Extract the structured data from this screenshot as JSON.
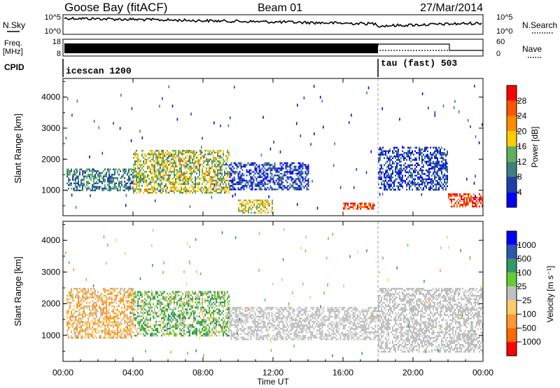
{
  "header": {
    "station": "Goose Bay (fitACF)",
    "beam": "Beam 01",
    "date": "27/Mar/2014"
  },
  "noise_panel": {
    "left_label": "N.Sky",
    "right_label": "N.Search",
    "left_ticks": [
      "10^5",
      "10^0"
    ],
    "right_ticks": [
      "10^5",
      "10^0"
    ]
  },
  "freq_panel": {
    "left_label_line1": "Freq.",
    "left_label_line2": "[MHz]",
    "right_label": "Nave",
    "left_ticks": [
      "18",
      "8"
    ],
    "right_ticks": [
      "60",
      "0"
    ]
  },
  "cpid_panel": {
    "label": "CPID",
    "segments": [
      {
        "name": "icescan 1200",
        "start_hour": 0,
        "end_hour": 18
      },
      {
        "name": "tau (fast) 503",
        "start_hour": 18,
        "end_hour": 24
      }
    ]
  },
  "colors": {
    "power_scale": [
      "#0000ff",
      "#1f3fa8",
      "#3f7f7f",
      "#5faf5f",
      "#ffcc00",
      "#ff8c00",
      "#ff5500",
      "#ff0000"
    ],
    "velocity_scale": [
      "#ff0000",
      "#ff6a00",
      "#ff9933",
      "#ffcc66",
      "#c0c0c0",
      "#66cc33",
      "#339966",
      "#2d57a8",
      "#0000ff"
    ]
  },
  "chart_data": [
    {
      "type": "heatmap",
      "name": "power",
      "ylabel": "Slant Range [km]",
      "ylim": [
        180,
        4600
      ],
      "xlim": [
        0,
        24
      ],
      "yticks": [
        "1000",
        "2000",
        "3000",
        "4000"
      ],
      "colorbar": {
        "label": "Power [dB]",
        "ticks": [
          "4",
          "8",
          "12",
          "16",
          "20",
          "24",
          "28"
        ],
        "range": [
          0,
          32
        ]
      },
      "regions": [
        {
          "t0": 0.2,
          "t1": 4.0,
          "r0": 1000,
          "r1": 1700,
          "value": 10
        },
        {
          "t0": 4.0,
          "t1": 9.5,
          "r0": 900,
          "r1": 2300,
          "value": 16
        },
        {
          "t0": 9.5,
          "t1": 14.0,
          "r0": 1000,
          "r1": 1900,
          "value": 6
        },
        {
          "t0": 10.0,
          "t1": 12.0,
          "r0": 300,
          "r1": 700,
          "value": 18
        },
        {
          "t0": 16.0,
          "t1": 17.8,
          "r0": 400,
          "r1": 600,
          "value": 26
        },
        {
          "t0": 18.0,
          "t1": 22.0,
          "r0": 1000,
          "r1": 2400,
          "value": 6
        },
        {
          "t0": 22.0,
          "t1": 24.0,
          "r0": 500,
          "r1": 900,
          "value": 28
        }
      ]
    },
    {
      "type": "heatmap",
      "name": "velocity",
      "ylabel": "Slant Range [km]",
      "ylim": [
        180,
        4600
      ],
      "xlim": [
        0,
        24
      ],
      "xlabel": "Time UT",
      "xticks": [
        "00:00",
        "04:00",
        "08:00",
        "12:00",
        "16:00",
        "20:00",
        "00:00"
      ],
      "yticks": [
        "1000",
        "2000",
        "3000",
        "4000"
      ],
      "colorbar": {
        "label": "Velocity [m s⁻¹]",
        "ticks": [
          "1000",
          "500",
          "100",
          "25",
          "−25",
          "−100",
          "−500",
          "−1000"
        ]
      },
      "regions": [
        {
          "t0": 0.2,
          "t1": 4.0,
          "r0": 900,
          "r1": 2500,
          "value": -100
        },
        {
          "t0": 4.0,
          "t1": 9.5,
          "r0": 1000,
          "r1": 2400,
          "value": 60
        },
        {
          "t0": 9.5,
          "t1": 18.0,
          "r0": 900,
          "r1": 1900,
          "value": 0
        },
        {
          "t0": 18.0,
          "t1": 24.0,
          "r0": 500,
          "r1": 2500,
          "value": 0
        }
      ]
    }
  ]
}
